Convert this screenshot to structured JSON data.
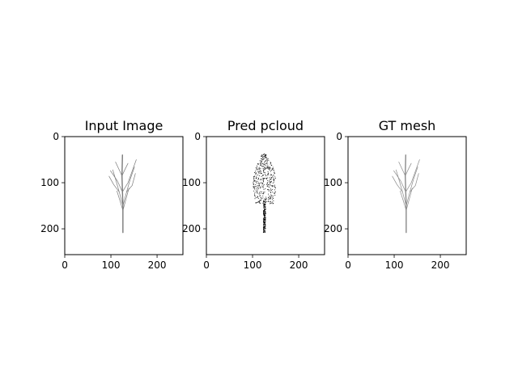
{
  "figure": {
    "background": "#ffffff",
    "axes_color": "#000000"
  },
  "chart_data": [
    {
      "type": "image",
      "title": "Input Image",
      "xlim": [
        0,
        256
      ],
      "ylim": [
        256,
        0
      ],
      "xticks": [
        0,
        100,
        200
      ],
      "yticks": [
        0,
        100,
        200
      ],
      "xtick_labels": [
        "0",
        "100",
        "200"
      ],
      "ytick_labels": [
        "0",
        "100",
        "200"
      ],
      "content": "tree-sketch",
      "color": "#7a7a7a"
    },
    {
      "type": "scatter",
      "title": "Pred pcloud",
      "xlim": [
        0,
        256
      ],
      "ylim": [
        256,
        0
      ],
      "xticks": [
        0,
        100,
        200
      ],
      "yticks": [
        0,
        100,
        200
      ],
      "xtick_labels": [
        "0",
        "100",
        "200"
      ],
      "ytick_labels": [
        "0",
        "100",
        "200"
      ],
      "content": "point-cloud",
      "color": "#000000"
    },
    {
      "type": "image",
      "title": "GT mesh",
      "xlim": [
        0,
        256
      ],
      "ylim": [
        256,
        0
      ],
      "xticks": [
        0,
        100,
        200
      ],
      "yticks": [
        0,
        100,
        200
      ],
      "xtick_labels": [
        "0",
        "100",
        "200"
      ],
      "ytick_labels": [
        "0",
        "100",
        "200"
      ],
      "content": "tree-sketch",
      "color": "#8a8a8a"
    }
  ]
}
